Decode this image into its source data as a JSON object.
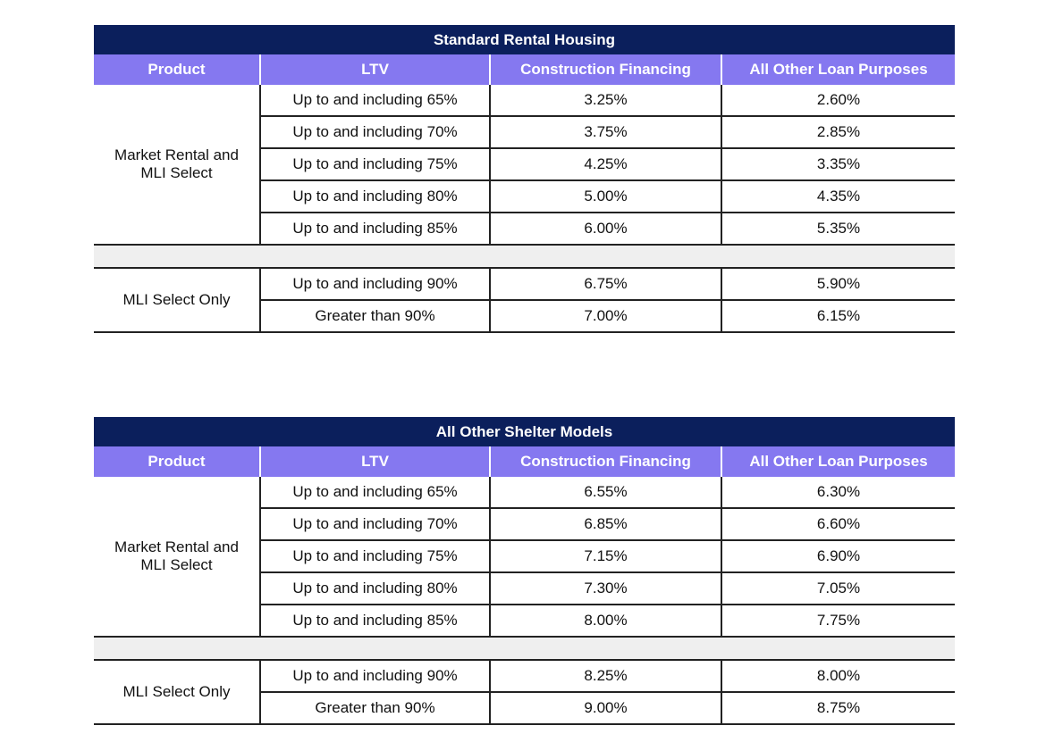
{
  "tables": [
    {
      "title": "Standard Rental Housing",
      "headers": [
        "Product",
        "LTV",
        "Construction Financing",
        "All Other Loan Purposes"
      ],
      "groups": [
        {
          "product": "Market Rental and MLI Select",
          "rows": [
            {
              "ltv": "Up to and including 65%",
              "construction": "3.25%",
              "other": "2.60%"
            },
            {
              "ltv": "Up to and including 70%",
              "construction": "3.75%",
              "other": "2.85%"
            },
            {
              "ltv": "Up to and including 75%",
              "construction": "4.25%",
              "other": "3.35%"
            },
            {
              "ltv": "Up to and including 80%",
              "construction": "5.00%",
              "other": "4.35%"
            },
            {
              "ltv": "Up to and including 85%",
              "construction": "6.00%",
              "other": "5.35%"
            }
          ]
        },
        {
          "product": "MLI Select Only",
          "rows": [
            {
              "ltv": "Up to and including 90%",
              "construction": "6.75%",
              "other": "5.90%"
            },
            {
              "ltv": "Greater than 90%",
              "construction": "7.00%",
              "other": "6.15%"
            }
          ]
        }
      ]
    },
    {
      "title": "All Other Shelter Models",
      "headers": [
        "Product",
        "LTV",
        "Construction Financing",
        "All Other Loan Purposes"
      ],
      "groups": [
        {
          "product": "Market Rental and MLI Select",
          "rows": [
            {
              "ltv": "Up to and including 65%",
              "construction": "6.55%",
              "other": "6.30%"
            },
            {
              "ltv": "Up to and including 70%",
              "construction": "6.85%",
              "other": "6.60%"
            },
            {
              "ltv": "Up to and including 75%",
              "construction": "7.15%",
              "other": "6.90%"
            },
            {
              "ltv": "Up to and including 80%",
              "construction": "7.30%",
              "other": "7.05%"
            },
            {
              "ltv": "Up to and including 85%",
              "construction": "8.00%",
              "other": "7.75%"
            }
          ]
        },
        {
          "product": "MLI Select Only",
          "rows": [
            {
              "ltv": "Up to and including 90%",
              "construction": "8.25%",
              "other": "8.00%"
            },
            {
              "ltv": "Greater than 90%",
              "construction": "9.00%",
              "other": "8.75%"
            }
          ]
        }
      ]
    }
  ],
  "colors": {
    "title_bg": "#0b1f5c",
    "header_bg": "#8578f0",
    "spacer_bg": "#efefef",
    "rule": "#222222"
  }
}
